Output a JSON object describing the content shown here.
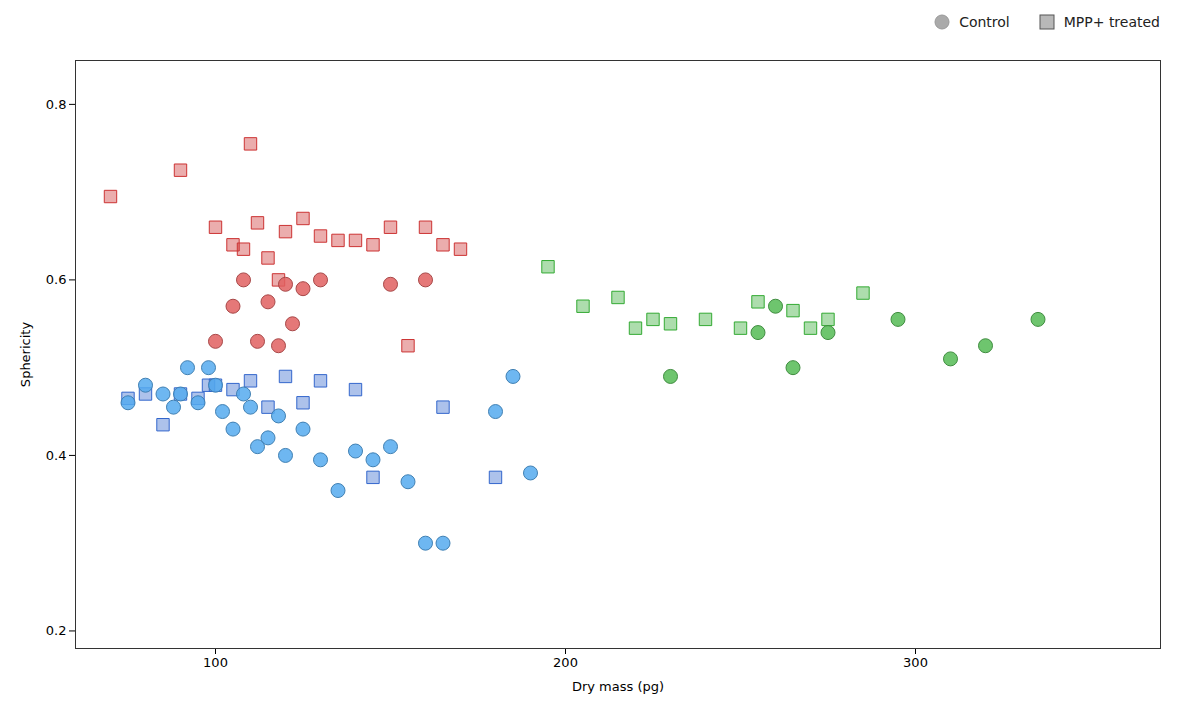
{
  "chart_data": {
    "type": "scatter",
    "xlabel": "Dry mass (pg)",
    "ylabel": "Sphericity",
    "xlim": [
      60,
      370
    ],
    "ylim": [
      0.18,
      0.85
    ],
    "xticks": [
      100,
      200,
      300
    ],
    "yticks": [
      0.2,
      0.4,
      0.6,
      0.8
    ],
    "grid": false,
    "legend": "upper right",
    "series": [
      {
        "name": "Control",
        "marker": "circle",
        "color": "#55aaee",
        "x": [
          75,
          80,
          85,
          88,
          90,
          92,
          95,
          98,
          100,
          102,
          105,
          108,
          110,
          112,
          115,
          118,
          120,
          125,
          130,
          135,
          140,
          145,
          150,
          155,
          160,
          165,
          180,
          185,
          190
        ],
        "values": [
          0.46,
          0.48,
          0.47,
          0.455,
          0.47,
          0.5,
          0.46,
          0.5,
          0.48,
          0.45,
          0.43,
          0.47,
          0.455,
          0.41,
          0.42,
          0.445,
          0.4,
          0.43,
          0.395,
          0.36,
          0.405,
          0.395,
          0.41,
          0.37,
          0.3,
          0.3,
          0.45,
          0.49,
          0.38
        ]
      },
      {
        "name": "Control",
        "marker": "circle",
        "color": "#e06060",
        "x": [
          100,
          105,
          108,
          112,
          115,
          118,
          120,
          122,
          125,
          130,
          150,
          160
        ],
        "values": [
          0.53,
          0.57,
          0.6,
          0.53,
          0.575,
          0.525,
          0.595,
          0.55,
          0.59,
          0.6,
          0.595,
          0.6
        ]
      },
      {
        "name": "Control",
        "marker": "circle",
        "color": "#55bb55",
        "x": [
          230,
          255,
          260,
          265,
          275,
          295,
          310,
          320,
          335
        ],
        "values": [
          0.49,
          0.54,
          0.57,
          0.5,
          0.54,
          0.555,
          0.51,
          0.525,
          0.555
        ]
      },
      {
        "name": "MPP+ treated",
        "marker": "square",
        "color": "#cc3333",
        "x": [
          70,
          90,
          100,
          105,
          108,
          110,
          112,
          115,
          118,
          120,
          125,
          130,
          135,
          140,
          145,
          150,
          155,
          160,
          165,
          170
        ],
        "values": [
          0.695,
          0.725,
          0.66,
          0.64,
          0.635,
          0.755,
          0.665,
          0.625,
          0.6,
          0.655,
          0.67,
          0.65,
          0.645,
          0.645,
          0.64,
          0.66,
          0.525,
          0.66,
          0.64,
          0.635
        ]
      },
      {
        "name": "MPP+ treated",
        "marker": "square",
        "color": "#33aa33",
        "x": [
          195,
          205,
          215,
          220,
          225,
          230,
          240,
          250,
          255,
          265,
          270,
          275,
          285
        ],
        "values": [
          0.615,
          0.57,
          0.58,
          0.545,
          0.555,
          0.55,
          0.555,
          0.545,
          0.575,
          0.565,
          0.545,
          0.555,
          0.585
        ]
      },
      {
        "name": "MPP+ treated",
        "marker": "square",
        "color": "#3366cc",
        "x": [
          75,
          80,
          85,
          90,
          95,
          98,
          100,
          105,
          110,
          115,
          120,
          125,
          130,
          140,
          145,
          165,
          180
        ],
        "values": [
          0.465,
          0.47,
          0.435,
          0.47,
          0.465,
          0.48,
          0.48,
          0.475,
          0.485,
          0.455,
          0.49,
          0.46,
          0.485,
          0.475,
          0.375,
          0.455,
          0.375
        ]
      }
    ]
  }
}
